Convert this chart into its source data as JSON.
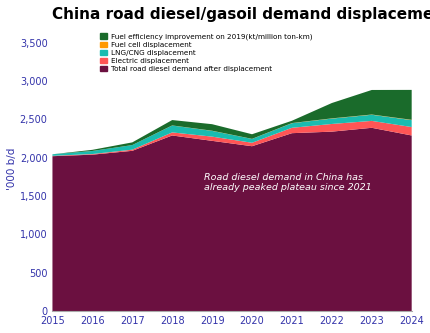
{
  "title": "China road diesel/gasoil demand displacement",
  "ylabel": "'000 b/d",
  "years": [
    2015,
    2016,
    2017,
    2018,
    2019,
    2020,
    2021,
    2022,
    2023,
    2024
  ],
  "total_road_diesel": [
    2020,
    2040,
    2090,
    2290,
    2220,
    2150,
    2320,
    2340,
    2390,
    2290
  ],
  "electric_displacement": [
    5,
    8,
    15,
    40,
    55,
    45,
    70,
    100,
    90,
    110
  ],
  "lng_cng_displacement": [
    20,
    40,
    60,
    90,
    75,
    50,
    60,
    70,
    80,
    90
  ],
  "fuel_cell_displacement": [
    0,
    0,
    0,
    1,
    2,
    1,
    2,
    3,
    3,
    4
  ],
  "fuel_efficiency_improvement": [
    0,
    15,
    35,
    70,
    85,
    60,
    30,
    200,
    320,
    390
  ],
  "colors": {
    "total_road_diesel": "#6B1040",
    "electric_displacement": "#FF5555",
    "lng_cng_displacement": "#1ABCB0",
    "fuel_cell_displacement": "#FF9900",
    "fuel_efficiency_improvement": "#1A6B2B"
  },
  "legend_labels": [
    "Fuel efficiency improvement on 2019(kt/million ton-km)",
    "Fuel cell displacement",
    "LNG/CNG displacement",
    "Electric displacement",
    "Total road diesel demand after displacement"
  ],
  "annotation_text": "Road diesel demand in China has\nalready peaked plateau since 2021",
  "ylim": [
    0,
    3700
  ],
  "yticks": [
    0,
    500,
    1000,
    1500,
    2000,
    2500,
    3000,
    3500
  ],
  "background_color": "#ffffff",
  "title_fontsize": 11,
  "tick_label_color": "#3333AA"
}
